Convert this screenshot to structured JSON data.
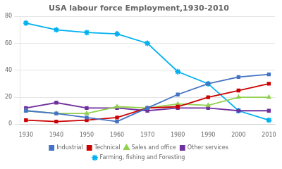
{
  "chart_data": {
    "type": "line",
    "title": "USA labour force Employment,1930-2010",
    "x": [
      1930,
      1940,
      1950,
      1960,
      1970,
      1980,
      1990,
      2000,
      2010
    ],
    "series": [
      {
        "name": "Industrial",
        "values": [
          10,
          8,
          5,
          2,
          12,
          22,
          30,
          35,
          37
        ],
        "color": "#4472C4",
        "marker": "square"
      },
      {
        "name": "Technical",
        "values": [
          3,
          2,
          3,
          5,
          12,
          13,
          20,
          25,
          30
        ],
        "color": "#CC0000",
        "marker": "square"
      },
      {
        "name": "Sales and office",
        "values": [
          10,
          8,
          8,
          13,
          12,
          15,
          14,
          20,
          20
        ],
        "color": "#92D050",
        "marker": "triangle"
      },
      {
        "name": "Other services",
        "values": [
          12,
          16,
          12,
          12,
          10,
          12,
          12,
          10,
          10
        ],
        "color": "#7030A0",
        "marker": "square"
      },
      {
        "name": "Farming, fishing and Foresting",
        "values": [
          75,
          70,
          68,
          67,
          60,
          39,
          30,
          10,
          3
        ],
        "color": "#00B0F0",
        "marker": "star"
      }
    ],
    "xlim": [
      1928,
      2012
    ],
    "xticks": [
      1930,
      1940,
      1950,
      1960,
      1970,
      1980,
      1990,
      2000,
      2010
    ],
    "ylim": [
      0,
      80
    ],
    "yticks": [
      0,
      20,
      40,
      60,
      80
    ],
    "grid": "y",
    "legend": "bottom"
  }
}
